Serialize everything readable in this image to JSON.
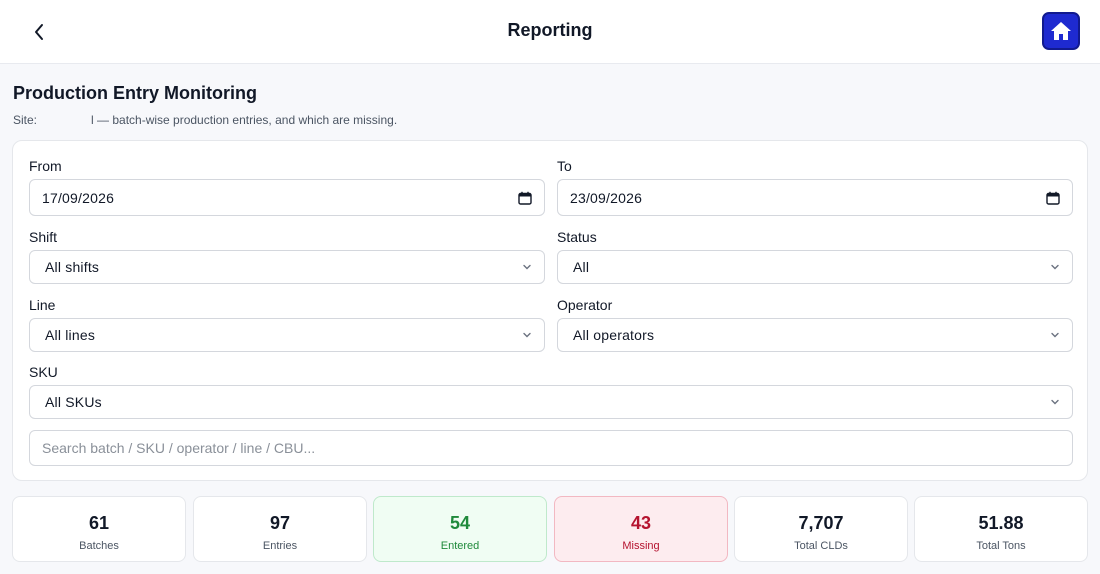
{
  "header": {
    "title": "Reporting"
  },
  "section": {
    "title": "Production Entry Monitoring",
    "subtitle_prefix": "Site:",
    "subtitle_suffix": "l — batch-wise production entries, and which are missing."
  },
  "filters": {
    "from": {
      "label": "From",
      "value": "17/09/2026"
    },
    "to": {
      "label": "To",
      "value": "23/09/2026"
    },
    "shift": {
      "label": "Shift",
      "value": "All shifts"
    },
    "status": {
      "label": "Status",
      "value": "All"
    },
    "line": {
      "label": "Line",
      "value": "All lines"
    },
    "operator": {
      "label": "Operator",
      "value": "All operators"
    },
    "sku": {
      "label": "SKU",
      "value": "All SKUs"
    },
    "search": {
      "placeholder": "Search batch / SKU / operator / line / CBU..."
    }
  },
  "stats": [
    {
      "value": "61",
      "label": "Batches"
    },
    {
      "value": "97",
      "label": "Entries"
    },
    {
      "value": "54",
      "label": "Entered"
    },
    {
      "value": "43",
      "label": "Missing"
    },
    {
      "value": "7,707",
      "label": "Total CLDs"
    },
    {
      "value": "51.88",
      "label": "Total Tons"
    }
  ],
  "colors": {
    "home_button": "#1e2ad0",
    "entered": "#1f8a3b",
    "entered_bg": "#f0fdf3",
    "missing": "#b5132f",
    "missing_bg": "#fdecef"
  },
  "icons": {
    "back": "chevron-left-icon",
    "home": "home-icon",
    "calendar": "calendar-icon",
    "dropdown": "chevron-down-icon"
  }
}
